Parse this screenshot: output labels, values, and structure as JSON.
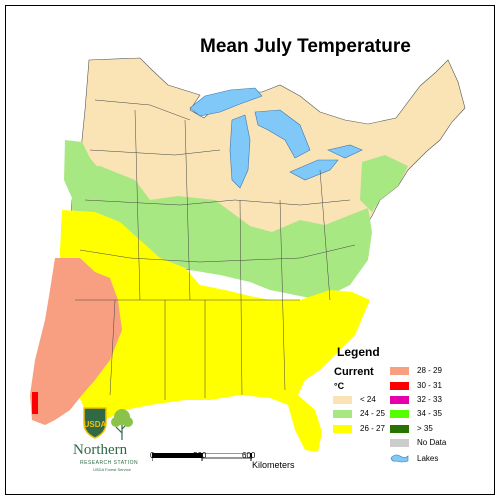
{
  "title": "Mean July Temperature",
  "legend": {
    "title": "Legend",
    "subtitle": "Current",
    "unit": "°C",
    "items": [
      {
        "label": "< 24",
        "color": "#fae3b5"
      },
      {
        "label": "24 - 25",
        "color": "#a8e882"
      },
      {
        "label": "26 - 27",
        "color": "#ffff00"
      },
      {
        "label": "28 - 29",
        "color": "#f79f80"
      },
      {
        "label": "30 - 31",
        "color": "#ff0000"
      },
      {
        "label": "32 - 33",
        "color": "#e600a9"
      },
      {
        "label": "34 - 35",
        "color": "#55ff00"
      },
      {
        "label": "> 35",
        "color": "#267300"
      },
      {
        "label": "No Data",
        "color": "#cccccc"
      },
      {
        "label": "Lakes",
        "color": "#7fc8f8"
      }
    ]
  },
  "scale_bar": {
    "ticks": [
      "0",
      "300",
      "600"
    ],
    "unit": "Kilometers"
  },
  "logo": {
    "badge": "USDA",
    "name": "Northern",
    "subtitle": "RESEARCH STATION",
    "subtitle2": "USDA Forest Service"
  }
}
